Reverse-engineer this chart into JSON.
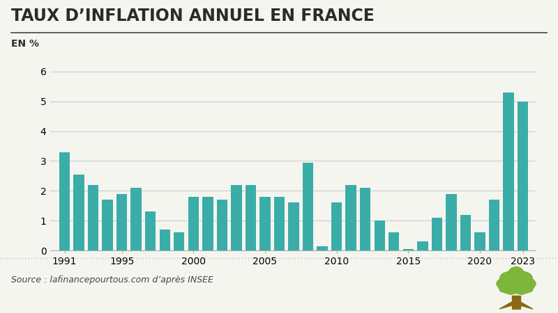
{
  "title": "TAUX D’INFLATION ANNUEL EN FRANCE",
  "ylabel": "EN %",
  "source": "Source : lafinancepourtous.com d’après INSEE",
  "bar_color": "#3AADA8",
  "background_color": "#F5F5F0",
  "years": [
    1991,
    1992,
    1993,
    1994,
    1995,
    1996,
    1997,
    1998,
    1999,
    2000,
    2001,
    2002,
    2003,
    2004,
    2005,
    2006,
    2007,
    2008,
    2009,
    2010,
    2011,
    2012,
    2013,
    2014,
    2015,
    2016,
    2017,
    2018,
    2019,
    2020,
    2021,
    2022,
    2023
  ],
  "values": [
    3.3,
    2.55,
    2.2,
    1.7,
    1.9,
    2.1,
    1.3,
    0.7,
    0.6,
    1.8,
    1.8,
    1.7,
    2.2,
    2.2,
    1.8,
    1.8,
    1.6,
    2.95,
    0.15,
    1.6,
    2.2,
    2.1,
    1.0,
    0.6,
    0.05,
    0.3,
    1.1,
    1.9,
    1.2,
    0.6,
    1.7,
    5.3,
    5.0
  ],
  "ylim": [
    0,
    6.3
  ],
  "yticks": [
    0,
    1,
    2,
    3,
    4,
    5,
    6
  ],
  "xtick_years": [
    1991,
    1995,
    2000,
    2005,
    2010,
    2015,
    2020,
    2023
  ],
  "grid_color": "#CCCCCC",
  "title_fontsize": 17,
  "ylabel_fontsize": 10,
  "source_fontsize": 9,
  "tick_fontsize": 10
}
